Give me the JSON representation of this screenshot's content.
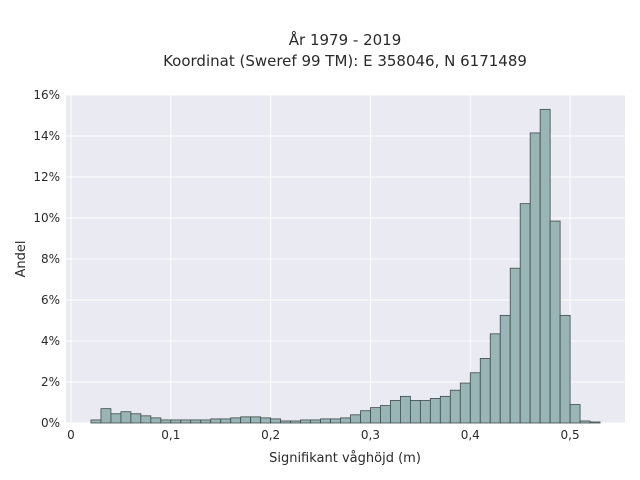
{
  "chart_data": {
    "type": "bar",
    "title_lines": [
      "År 1979 - 2019",
      "Koordinat (Sweref 99 TM): E 358046, N 6171489"
    ],
    "xlabel": "Signifikant våghöjd (m)",
    "ylabel": "Andel",
    "xlim": [
      -0.005,
      0.555
    ],
    "ylim": [
      0,
      16
    ],
    "x_ticks": [
      0,
      0.1,
      0.2,
      0.3,
      0.4,
      0.5
    ],
    "x_tick_labels": [
      "0",
      "0,1",
      "0,2",
      "0,3",
      "0,4",
      "0,5"
    ],
    "y_ticks": [
      0,
      2,
      4,
      6,
      8,
      10,
      12,
      14,
      16
    ],
    "y_tick_labels": [
      "0%",
      "2%",
      "4%",
      "6%",
      "8%",
      "10%",
      "12%",
      "14%",
      "16%"
    ],
    "bin_width": 0.01,
    "bin_starts": [
      0.02,
      0.03,
      0.04,
      0.05,
      0.06,
      0.07,
      0.08,
      0.09,
      0.1,
      0.11,
      0.12,
      0.13,
      0.14,
      0.15,
      0.16,
      0.17,
      0.18,
      0.19,
      0.2,
      0.21,
      0.22,
      0.23,
      0.24,
      0.25,
      0.26,
      0.27,
      0.28,
      0.29,
      0.3,
      0.31,
      0.32,
      0.33,
      0.34,
      0.35,
      0.36,
      0.37,
      0.38,
      0.39,
      0.4,
      0.41,
      0.42,
      0.43,
      0.44,
      0.45,
      0.46,
      0.47,
      0.48,
      0.49,
      0.5,
      0.51,
      0.52
    ],
    "values": [
      0.15,
      0.7,
      0.45,
      0.55,
      0.45,
      0.35,
      0.25,
      0.15,
      0.15,
      0.15,
      0.15,
      0.15,
      0.2,
      0.2,
      0.25,
      0.3,
      0.3,
      0.25,
      0.2,
      0.1,
      0.1,
      0.15,
      0.15,
      0.2,
      0.2,
      0.25,
      0.4,
      0.6,
      0.75,
      0.85,
      1.1,
      1.3,
      1.1,
      1.1,
      1.2,
      1.3,
      1.6,
      1.95,
      2.45,
      3.15,
      4.35,
      5.25,
      7.55,
      10.7,
      14.15,
      15.3,
      9.85,
      5.25,
      0.9,
      0.1,
      0.05
    ],
    "grid": true,
    "colors": {
      "bar_fill": "#9ab5b5",
      "bar_edge": "#3e4a4a",
      "plot_background": "#eaeaf2",
      "grid": "#ffffff"
    }
  }
}
